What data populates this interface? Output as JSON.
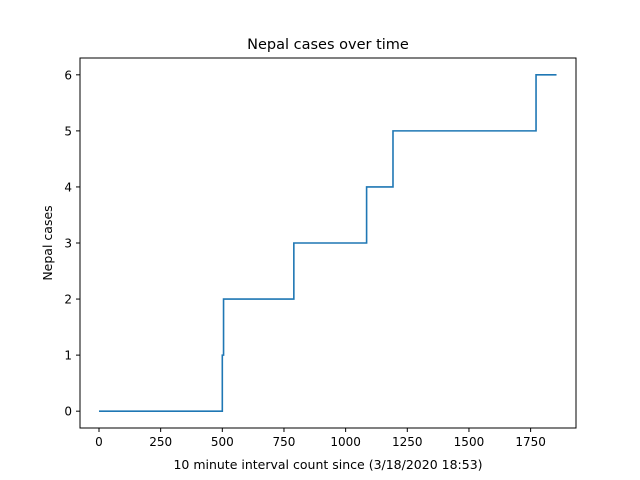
{
  "chart_data": {
    "type": "line",
    "title": "Nepal cases over time",
    "xlabel": "10 minute interval count since (3/18/2020 18:53)",
    "ylabel": "Nepal cases",
    "xlim": [
      -77,
      1934
    ],
    "ylim": [
      -0.3,
      6.3
    ],
    "xticks": [
      0,
      250,
      500,
      750,
      1000,
      1250,
      1500,
      1750
    ],
    "yticks": [
      0,
      1,
      2,
      3,
      4,
      5,
      6
    ],
    "grid": false,
    "legend": "none",
    "series": [
      {
        "color": "#1f77b4",
        "step": true,
        "x": [
          0,
          500,
          500,
          505,
          505,
          790,
          790,
          1085,
          1085,
          1192,
          1192,
          1772,
          1772,
          1855
        ],
        "y": [
          0,
          0,
          1,
          1,
          2,
          2,
          3,
          3,
          4,
          4,
          5,
          5,
          6,
          6
        ]
      }
    ]
  }
}
